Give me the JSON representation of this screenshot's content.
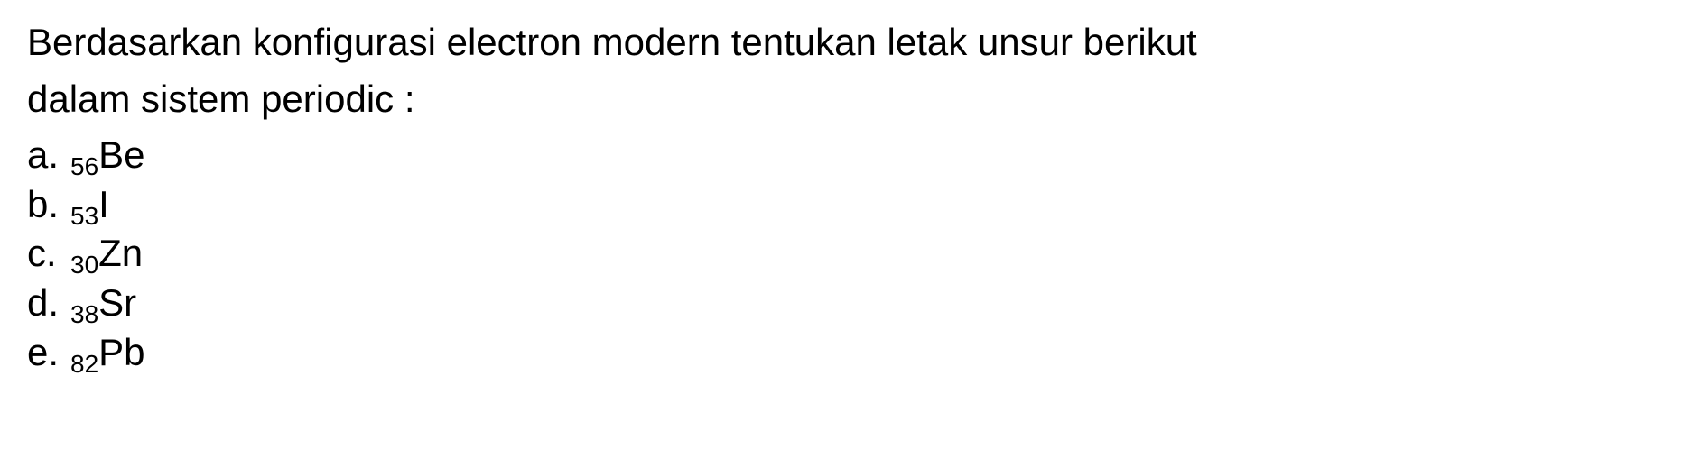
{
  "question": {
    "line1": "Berdasarkan konfigurasi electron modern tentukan letak unsur berikut",
    "line2": "dalam sistem periodic :"
  },
  "options": [
    {
      "letter": "a.",
      "subscript": "56",
      "element": "Be"
    },
    {
      "letter": "b.",
      "subscript": "53",
      "element": "I"
    },
    {
      "letter": "c.",
      "subscript": "30",
      "element": "Zn"
    },
    {
      "letter": "d.",
      "subscript": "38",
      "element": "Sr"
    },
    {
      "letter": "e.",
      "subscript": "82",
      "element": "Pb"
    }
  ],
  "styling": {
    "background_color": "#ffffff",
    "text_color": "#000000",
    "font_family": "Arial, Helvetica, sans-serif",
    "question_fontsize": 42,
    "option_fontsize": 42,
    "subscript_fontsize": 28,
    "line_height": 1.3
  }
}
